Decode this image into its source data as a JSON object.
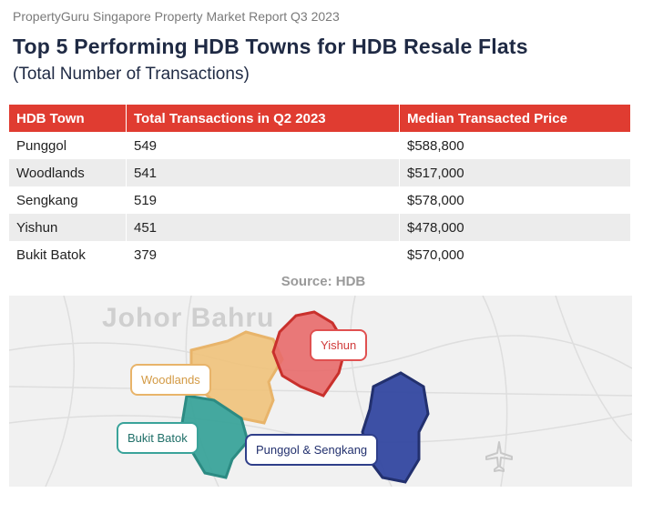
{
  "header": {
    "report_label": "PropertyGuru Singapore Property Market Report Q3 2023",
    "title": "Top 5 Performing HDB Towns for HDB Resale Flats",
    "subtitle": "(Total Number of Transactions)"
  },
  "table": {
    "columns": [
      "HDB Town",
      "Total Transactions in Q2 2023",
      "Median Transacted Price"
    ],
    "rows": [
      [
        "Punggol",
        "549",
        "$588,800"
      ],
      [
        "Woodlands",
        "541",
        "$517,000"
      ],
      [
        "Sengkang",
        "519",
        "$578,000"
      ],
      [
        "Yishun",
        "451",
        "$478,000"
      ],
      [
        "Bukit Batok",
        "379",
        "$570,000"
      ]
    ]
  },
  "source": "Source: HDB",
  "map": {
    "basemap_label": "Johor Bahru",
    "labels": {
      "yishun": "Yishun",
      "woodlands": "Woodlands",
      "bukit_batok": "Bukit Batok",
      "punggol_sengkang": "Punggol & Sengkang"
    },
    "colors": {
      "header_red": "#e03c31",
      "yishun": "#e05050",
      "woodlands": "#f0c27a",
      "bukit_batok": "#3aa39a",
      "punggol_sengkang": "#3347a0"
    },
    "icons": [
      "airplane-icon"
    ]
  }
}
